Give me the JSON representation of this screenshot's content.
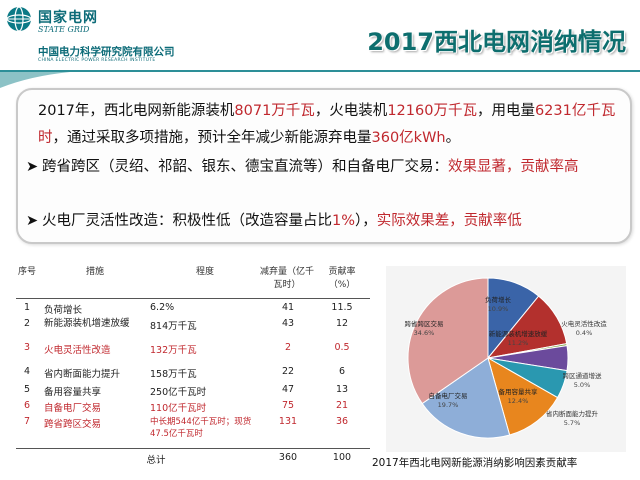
{
  "header": {
    "logo_cn": "国家电网",
    "logo_en": "STATE GRID",
    "institute_cn": "中国电力科学研究院有限公司",
    "institute_en": "CHINA ELECTRIC POWER RESEARCH INSTITUTE",
    "title": "2017西北电网消纳情况"
  },
  "summary": {
    "p_1": "2017年，西北电网新能源装机",
    "p_2": "8071万千瓦",
    "p_3": "，火电装机",
    "p_4": "12160万千瓦",
    "p_5": "，用电量",
    "p_6": "6231亿千瓦时",
    "p_7": "，通过采取多项措施，预计全年减少新能源弃电量",
    "p_8": "360亿kWh",
    "p_9": "。",
    "bullet1_text": "跨省跨区（灵绍、祁韶、银东、德宝直流等）和自备电厂交易：",
    "bullet1_red": "效果显著，贡献率高",
    "bullet2_text": "火电厂灵活性改造：积极性低（改造容量占比",
    "bullet2_pct": "1%",
    "bullet2_mid": "），",
    "bullet2_red": "实际效果差，贡献率低"
  },
  "table": {
    "headers": {
      "no": "序号",
      "measure": "措施",
      "degree": "程度",
      "reduction": "减弃量（亿千瓦时）",
      "contribution": "贡献率（%）"
    },
    "rows": [
      {
        "no": "1",
        "measure": "负荷增长",
        "degree": "6.2%",
        "reduction": "41",
        "contribution": "11.5",
        "red": false
      },
      {
        "no": "2",
        "measure": "新能源装机增速放缓",
        "degree": "814万千瓦",
        "reduction": "43",
        "contribution": "12",
        "red": false
      },
      {
        "no": "3",
        "measure": "火电灵活性改造",
        "degree": "132万千瓦",
        "reduction": "2",
        "contribution": "0.5",
        "red": true
      },
      {
        "no": "4",
        "measure": "省内断面能力提升",
        "degree": "158万千瓦",
        "reduction": "22",
        "contribution": "6",
        "red": false
      },
      {
        "no": "5",
        "measure": "备用容量共享",
        "degree": "250亿千瓦时",
        "reduction": "47",
        "contribution": "13",
        "red": false
      },
      {
        "no": "6",
        "measure": "自备电厂交易",
        "degree": "110亿千瓦时",
        "reduction": "75",
        "contribution": "21",
        "red": true
      },
      {
        "no": "7",
        "measure": "跨省跨区交易",
        "degree": "中长期544亿千瓦时；现货47.5亿千瓦时",
        "reduction": "131",
        "contribution": "36",
        "red": true
      }
    ],
    "total_label": "总计",
    "total_reduction": "360",
    "total_contribution": "100"
  },
  "chart_data": {
    "type": "pie",
    "title": "2017年西北电网新能源消纳影响因素贡献率",
    "slices": [
      {
        "label": "负荷增长",
        "value": 10.9,
        "value_label": "10.9%",
        "color": "#3a64a8"
      },
      {
        "label": "新能源装机增速放缓",
        "value": 11.2,
        "value_label": "11.2%",
        "color": "#b3302d"
      },
      {
        "label": "火电灵活性改造",
        "value": 0.4,
        "value_label": "0.4%",
        "color": "#7aa23c"
      },
      {
        "label": "跨区通道增送",
        "value": 5.0,
        "value_label": "5.0%",
        "color": "#6b4a9c"
      },
      {
        "label": "省内断面能力提升",
        "value": 5.7,
        "value_label": "5.7%",
        "color": "#2a98b0"
      },
      {
        "label": "备用容量共享",
        "value": 12.4,
        "value_label": "12.4%",
        "color": "#e8861e"
      },
      {
        "label": "自备电厂交易",
        "value": 19.7,
        "value_label": "19.7%",
        "color": "#8eaed8"
      },
      {
        "label": "跨省跨区交易",
        "value": 34.6,
        "value_label": "34.6%",
        "color": "#dc9a98"
      }
    ]
  }
}
